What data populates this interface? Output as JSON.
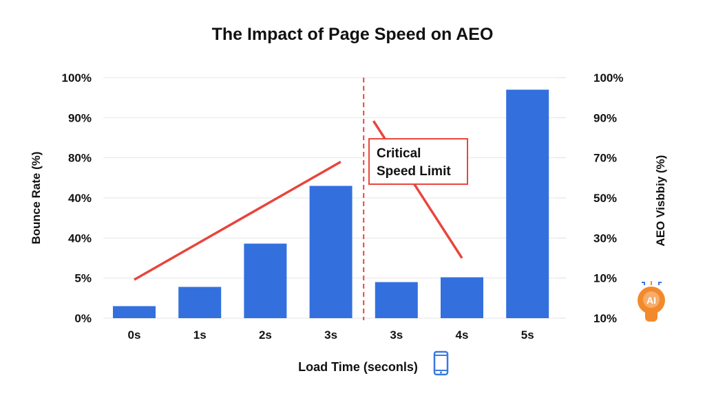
{
  "chart_data": {
    "type": "bar",
    "title": "The Impact of Page Speed on AEO",
    "xlabel": "Load Time (seconls)",
    "ylabel": "Bounce Rate (%)",
    "ylabel_right": "AEO Visbbiy (%)",
    "categories": [
      "0s",
      "1s",
      "2s",
      "3s",
      "3s",
      "4s",
      "5s"
    ],
    "ylim": [
      0,
      100
    ],
    "yticks_left": [
      "0%",
      "5%",
      "40%",
      "40%",
      "80%",
      "90%",
      "100%"
    ],
    "yticks_right": [
      "10%",
      "10%",
      "30%",
      "50%",
      "70%",
      "90%",
      "100%"
    ],
    "grid": true,
    "bars": {
      "values": [
        5,
        13,
        31,
        55,
        15,
        17,
        95
      ],
      "color": "#3370de"
    },
    "trend_lines": [
      {
        "x": [
          0,
          3.15
        ],
        "y": [
          16,
          65
        ],
        "color": "#e8453c"
      },
      {
        "x": [
          3.65,
          5
        ],
        "y": [
          82,
          25
        ],
        "color": "#e8453c"
      }
    ],
    "threshold": {
      "x_between": [
        3,
        4
      ],
      "style": "dashed",
      "color": "#e8453c"
    },
    "annotation": {
      "lines": [
        "Critical",
        "Speed Limit"
      ],
      "border_color": "#e8453c"
    },
    "icons": {
      "right_axis": "ai-brain-icon",
      "x_label": "smartphone-icon"
    },
    "accent_orange": "#f28a2c"
  }
}
